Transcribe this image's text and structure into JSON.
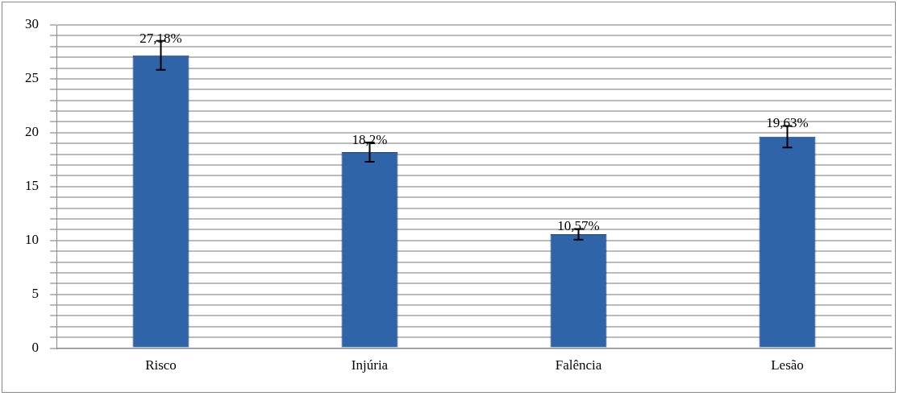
{
  "chart_data": {
    "type": "bar",
    "categories": [
      "Risco",
      "Injúria",
      "Falência",
      "Lesão"
    ],
    "values": [
      27.18,
      18.2,
      10.57,
      19.63
    ],
    "value_labels": [
      "27,18%",
      "18,2%",
      "10,57%",
      "19,63%"
    ],
    "errors": [
      1.35,
      0.9,
      0.5,
      1.0
    ],
    "color": "#2f64a8",
    "ylim": [
      0,
      30
    ],
    "yticks": [
      0,
      {
        "value": 1,
        "label": null
      },
      {
        "value": 2,
        "label": null
      },
      {
        "value": 3,
        "label": null
      },
      {
        "value": 4,
        "label": null
      },
      5,
      {
        "value": 6,
        "label": null
      },
      {
        "value": 7,
        "label": null
      },
      {
        "value": 8,
        "label": null
      },
      {
        "value": 9,
        "label": null
      },
      10,
      {
        "value": 11,
        "label": null
      },
      {
        "value": 12,
        "label": null
      },
      {
        "value": 13,
        "label": null
      },
      {
        "value": 14,
        "label": null
      },
      15,
      {
        "value": 16,
        "label": null
      },
      {
        "value": 17,
        "label": null
      },
      {
        "value": 18,
        "label": null
      },
      {
        "value": 19,
        "label": null
      },
      20,
      {
        "value": 21,
        "label": null
      },
      {
        "value": 22,
        "label": null
      },
      {
        "value": 23,
        "label": null
      },
      {
        "value": 24,
        "label": null
      },
      25,
      {
        "value": 26,
        "label": null
      },
      {
        "value": 27,
        "label": null
      },
      {
        "value": 28,
        "label": null
      },
      {
        "value": 29,
        "label": null
      },
      30
    ],
    "grid": "y",
    "legend": false
  }
}
